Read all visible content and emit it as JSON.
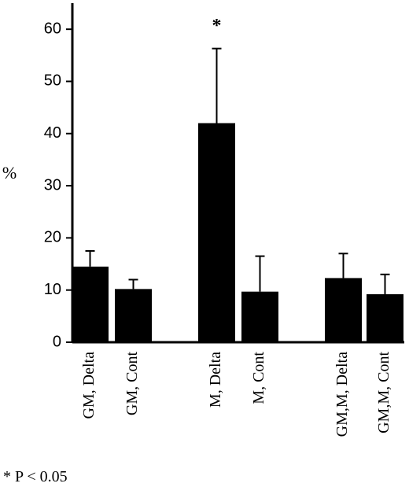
{
  "chart_data": {
    "type": "bar",
    "y_label": "%",
    "categories": [
      "GM, Delta",
      "GM, Cont",
      "M, Delta",
      "M, Cont",
      "GM,M, Delta",
      "GM,M, Cont"
    ],
    "values": [
      14.5,
      10.2,
      42,
      9.7,
      12.3,
      9.2
    ],
    "errors": [
      3,
      1.8,
      14.3,
      6.8,
      4.7,
      3.8
    ],
    "color": "#000000",
    "ylim": [
      0,
      65
    ],
    "yticks": [
      0,
      10,
      20,
      30,
      40,
      50,
      60
    ],
    "significance_marker": "*",
    "footnote": "* P < 0.05"
  }
}
